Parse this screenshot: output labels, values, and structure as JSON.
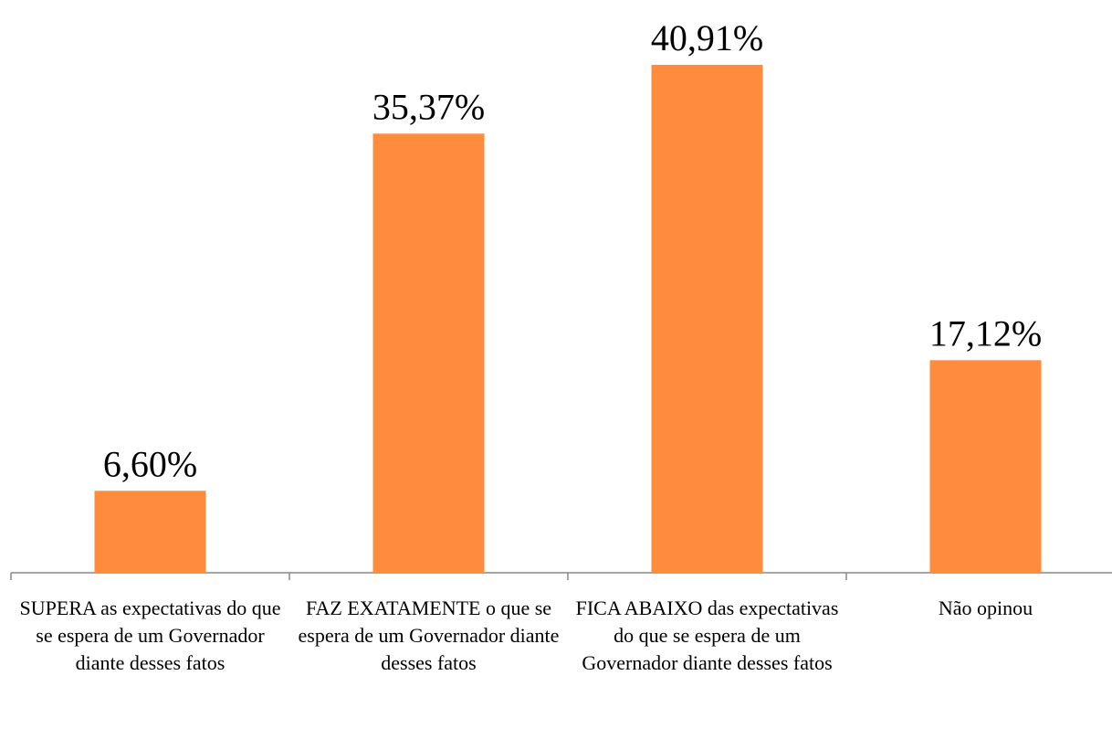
{
  "chart_data": {
    "type": "bar",
    "categories": [
      "SUPERA as expectativas do que se espera de um Governador diante desses fatos",
      "FAZ EXATAMENTE o que se espera de um Governador diante desses fatos",
      "FICA ABAIXO das expectativas do que se espera de um Governador diante desses fatos",
      "Não opinou"
    ],
    "values": [
      6.6,
      35.37,
      40.91,
      17.12
    ],
    "value_labels": [
      "6,60%",
      "35,37%",
      "40,91%",
      "17,12%"
    ],
    "color": "#ff8b3d"
  }
}
